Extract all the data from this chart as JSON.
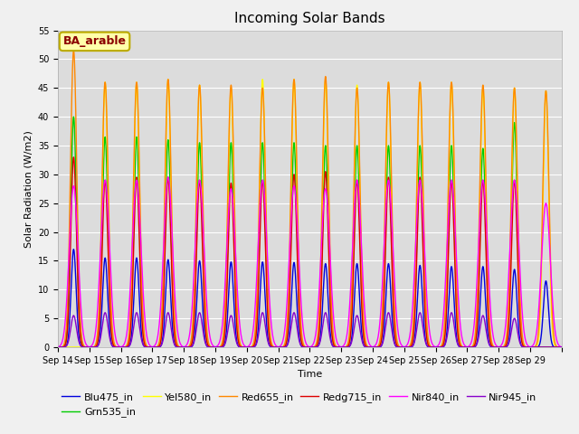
{
  "title": "Incoming Solar Bands",
  "xlabel": "Time",
  "ylabel": "Solar Radiation (W/m2)",
  "annotation": "BA_arable",
  "ylim": [
    0,
    55
  ],
  "plot_bg": "#dcdcdc",
  "fig_bg": "#f0f0f0",
  "series_order": [
    "Blu475_in",
    "Grn535_in",
    "Yel580_in",
    "Red655_in",
    "Redg715_in",
    "Nir840_in",
    "Nir945_in"
  ],
  "series": {
    "Blu475_in": {
      "color": "#0000dd",
      "label": "Blu475_in",
      "sigma": 0.08
    },
    "Grn535_in": {
      "color": "#00cc00",
      "label": "Grn535_in",
      "sigma": 0.09
    },
    "Yel580_in": {
      "color": "#ffff00",
      "label": "Yel580_in",
      "sigma": 0.09
    },
    "Red655_in": {
      "color": "#ff8800",
      "label": "Red655_in",
      "sigma": 0.1
    },
    "Redg715_in": {
      "color": "#dd0000",
      "label": "Redg715_in",
      "sigma": 0.09
    },
    "Nir840_in": {
      "color": "#ff00ff",
      "label": "Nir840_in",
      "sigma": 0.14
    },
    "Nir945_in": {
      "color": "#8800cc",
      "label": "Nir945_in",
      "sigma": 0.09
    }
  },
  "days": [
    "Sep 14",
    "Sep 15",
    "Sep 16",
    "Sep 17",
    "Sep 18",
    "Sep 19",
    "Sep 20",
    "Sep 21",
    "Sep 22",
    "Sep 23",
    "Sep 24",
    "Sep 25",
    "Sep 26",
    "Sep 27",
    "Sep 28",
    "Sep 29"
  ],
  "peaks": {
    "Blu475_in": [
      17,
      15.5,
      15.5,
      15.2,
      15,
      14.8,
      14.8,
      14.7,
      14.5,
      14.5,
      14.5,
      14.2,
      14.0,
      14.0,
      13.5,
      11.5
    ],
    "Grn535_in": [
      40,
      36.5,
      36.5,
      36,
      35.5,
      35.5,
      35.5,
      35.5,
      35,
      35,
      35,
      35,
      35,
      34.5,
      39,
      0
    ],
    "Yel580_in": [
      0,
      46,
      46,
      46.5,
      45.5,
      45,
      46.5,
      46.5,
      46.5,
      45.5,
      46,
      46,
      46,
      45,
      45,
      44.5
    ],
    "Red655_in": [
      51.5,
      46,
      46,
      46.5,
      45.5,
      45.5,
      45,
      46.5,
      47,
      45,
      46,
      46,
      46,
      45.5,
      45,
      44.5
    ],
    "Redg715_in": [
      33,
      29,
      29.5,
      29.5,
      29,
      28.5,
      29,
      30,
      30.5,
      29,
      29.5,
      29.5,
      29,
      29,
      29,
      0
    ],
    "Nir840_in": [
      28,
      29,
      29,
      29.5,
      29,
      27.5,
      29,
      28,
      27.5,
      29,
      29,
      29,
      29,
      29,
      29,
      25
    ],
    "Nir945_in": [
      5.5,
      6,
      6,
      6,
      6,
      5.5,
      6,
      6,
      6,
      5.5,
      6,
      6,
      6,
      5.5,
      5,
      0
    ]
  },
  "lw": 1.0,
  "legend_fontsize": 8,
  "title_fontsize": 11,
  "tick_fontsize": 7,
  "ylabel_fontsize": 8,
  "xlabel_fontsize": 8
}
